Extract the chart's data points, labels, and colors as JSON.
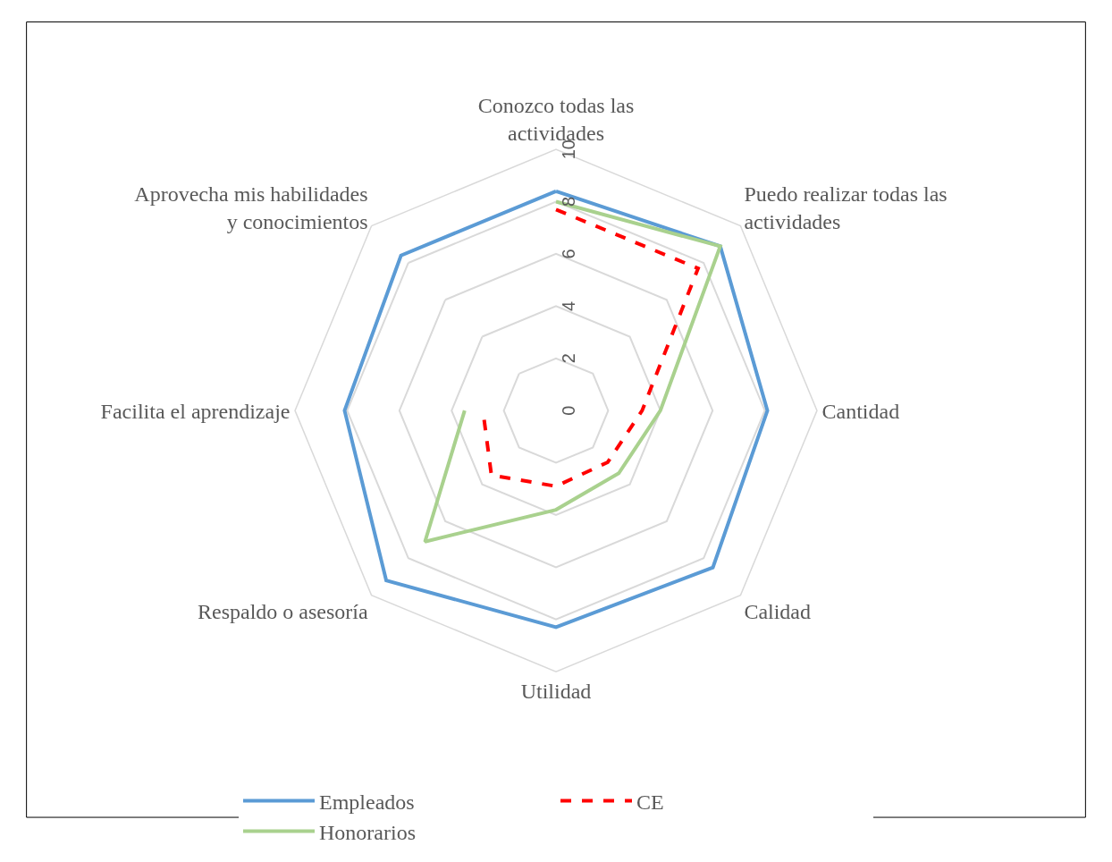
{
  "chart_data": {
    "type": "radar",
    "categories": [
      "Conozco todas las actividades",
      "Puedo realizar todas las actividades",
      "Cantidad",
      "Calidad",
      "Utilidad",
      "Respaldo o asesoría",
      "Facilita el aprendizaje",
      "Aprovecha mis habilidades y conocimientos"
    ],
    "series": [
      {
        "name": "Empleados",
        "color": "#5b9bd5",
        "line_style": "solid",
        "values": [
          8.4,
          8.9,
          8.1,
          8.5,
          8.3,
          9.2,
          8.1,
          8.4
        ]
      },
      {
        "name": "CE",
        "color": "#ff0000",
        "line_style": "dashed",
        "values": [
          7.7,
          7.7,
          3.3,
          2.8,
          2.9,
          3.5,
          2.8,
          null
        ]
      },
      {
        "name": "Honorarios",
        "color": "#a9d18e",
        "line_style": "solid",
        "values": [
          8.0,
          8.9,
          4.0,
          3.4,
          3.8,
          7.1,
          3.5,
          null
        ]
      }
    ],
    "ylim": [
      0,
      10
    ],
    "yticks": [
      0,
      2,
      4,
      6,
      8,
      10
    ],
    "grid": true,
    "legend": "bottom",
    "marker": "none"
  }
}
